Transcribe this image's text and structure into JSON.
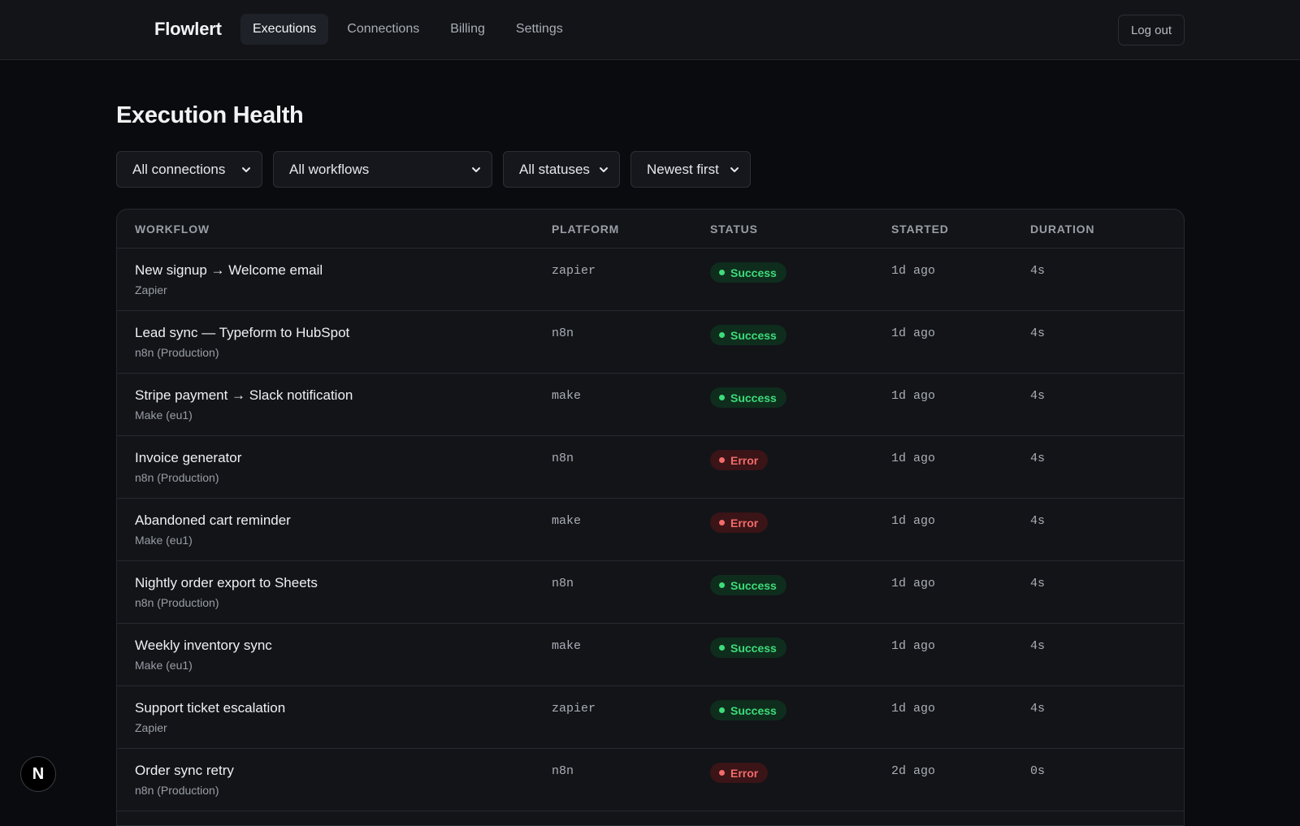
{
  "app": {
    "brand": "Flowlert",
    "nav": [
      {
        "label": "Executions",
        "active": true
      },
      {
        "label": "Connections",
        "active": false
      },
      {
        "label": "Billing",
        "active": false
      },
      {
        "label": "Settings",
        "active": false
      }
    ],
    "logout_label": "Log out"
  },
  "page": {
    "title": "Execution Health",
    "filters": {
      "connection": "All connections",
      "workflow": "All workflows",
      "status": "All statuses",
      "sort": "Newest first"
    }
  },
  "table": {
    "headers": {
      "workflow": "WORKFLOW",
      "platform": "PLATFORM",
      "status": "STATUS",
      "started": "STARTED",
      "duration": "DURATION"
    },
    "rows": [
      {
        "name": "New signup → Welcome email",
        "connection": "Zapier",
        "platform": "zapier",
        "status": "Success",
        "started": "1d ago",
        "duration": "4s"
      },
      {
        "name": "Lead sync — Typeform to HubSpot",
        "connection": "n8n (Production)",
        "platform": "n8n",
        "status": "Success",
        "started": "1d ago",
        "duration": "4s"
      },
      {
        "name": "Stripe payment → Slack notification",
        "connection": "Make (eu1)",
        "platform": "make",
        "status": "Success",
        "started": "1d ago",
        "duration": "4s"
      },
      {
        "name": "Invoice generator",
        "connection": "n8n (Production)",
        "platform": "n8n",
        "status": "Error",
        "started": "1d ago",
        "duration": "4s"
      },
      {
        "name": "Abandoned cart reminder",
        "connection": "Make (eu1)",
        "platform": "make",
        "status": "Error",
        "started": "1d ago",
        "duration": "4s"
      },
      {
        "name": "Nightly order export to Sheets",
        "connection": "n8n (Production)",
        "platform": "n8n",
        "status": "Success",
        "started": "1d ago",
        "duration": "4s"
      },
      {
        "name": "Weekly inventory sync",
        "connection": "Make (eu1)",
        "platform": "make",
        "status": "Success",
        "started": "1d ago",
        "duration": "4s"
      },
      {
        "name": "Support ticket escalation",
        "connection": "Zapier",
        "platform": "zapier",
        "status": "Success",
        "started": "1d ago",
        "duration": "4s"
      },
      {
        "name": "Order sync retry",
        "connection": "n8n (Production)",
        "platform": "n8n",
        "status": "Error",
        "started": "2d ago",
        "duration": "0s"
      }
    ]
  },
  "dev_badge": {
    "letter": "N",
    "icon": "nextjs-icon"
  },
  "colors": {
    "background": "#0a0b0e",
    "surface": "#121418",
    "success": "#3ddc7a",
    "error": "#f26b6b"
  }
}
